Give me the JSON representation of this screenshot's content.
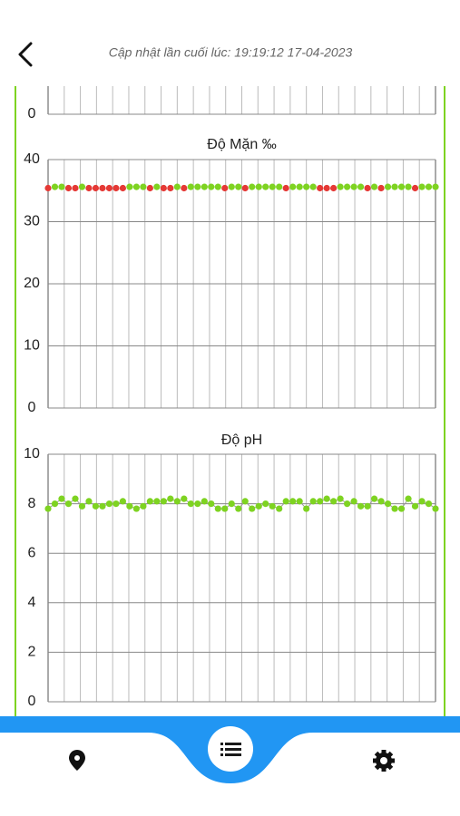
{
  "header": {
    "title": "Cập nhật lần cuối lúc: 19:19:12 17-04-2023"
  },
  "chart_data": [
    {
      "type": "line",
      "yticks": [
        0
      ]
    },
    {
      "type": "scatter",
      "title": "Độ Mặn  ‰",
      "ylim": [
        0,
        40
      ],
      "yticks": [
        0,
        10,
        20,
        30,
        40
      ],
      "grid": true,
      "values": [
        35.4,
        35.6,
        35.6,
        35.4,
        35.4,
        35.6,
        35.4,
        35.4,
        35.4,
        35.4,
        35.4,
        35.4,
        35.6,
        35.6,
        35.6,
        35.4,
        35.6,
        35.4,
        35.4,
        35.6,
        35.4,
        35.6,
        35.6,
        35.6,
        35.6,
        35.6,
        35.4,
        35.6,
        35.6,
        35.4,
        35.6,
        35.6,
        35.6,
        35.6,
        35.6,
        35.4,
        35.6,
        35.6,
        35.6,
        35.6,
        35.4,
        35.4,
        35.4,
        35.6,
        35.6,
        35.6,
        35.6,
        35.4,
        35.6,
        35.4,
        35.6,
        35.6,
        35.6,
        35.6,
        35.4,
        35.6,
        35.6,
        35.6
      ],
      "colors": [
        "#e53935",
        "#7ed321",
        "#7ed321",
        "#e53935",
        "#e53935",
        "#7ed321",
        "#e53935",
        "#e53935",
        "#e53935",
        "#e53935",
        "#e53935",
        "#e53935",
        "#7ed321",
        "#7ed321",
        "#7ed321",
        "#e53935",
        "#7ed321",
        "#e53935",
        "#e53935",
        "#7ed321",
        "#e53935",
        "#7ed321",
        "#7ed321",
        "#7ed321",
        "#7ed321",
        "#7ed321",
        "#e53935",
        "#7ed321",
        "#7ed321",
        "#e53935",
        "#7ed321",
        "#7ed321",
        "#7ed321",
        "#7ed321",
        "#7ed321",
        "#e53935",
        "#7ed321",
        "#7ed321",
        "#7ed321",
        "#7ed321",
        "#e53935",
        "#e53935",
        "#e53935",
        "#7ed321",
        "#7ed321",
        "#7ed321",
        "#7ed321",
        "#e53935",
        "#7ed321",
        "#e53935",
        "#7ed321",
        "#7ed321",
        "#7ed321",
        "#7ed321",
        "#e53935",
        "#7ed321",
        "#7ed321",
        "#7ed321"
      ]
    },
    {
      "type": "line",
      "title": "Độ pH",
      "ylim": [
        0,
        10
      ],
      "yticks": [
        0,
        2,
        4,
        6,
        8,
        10
      ],
      "grid": true,
      "color": "#7ed321",
      "line_color": "#999999",
      "values": [
        7.8,
        8.0,
        8.2,
        8.0,
        8.2,
        7.9,
        8.1,
        7.9,
        7.9,
        8.0,
        8.0,
        8.1,
        7.9,
        7.8,
        7.9,
        8.1,
        8.1,
        8.1,
        8.2,
        8.1,
        8.2,
        8.0,
        8.0,
        8.1,
        8.0,
        7.8,
        7.8,
        8.0,
        7.8,
        8.1,
        7.8,
        7.9,
        8.0,
        7.9,
        7.8,
        8.1,
        8.1,
        8.1,
        7.8,
        8.1,
        8.1,
        8.2,
        8.1,
        8.2,
        8.0,
        8.1,
        7.9,
        7.9,
        8.2,
        8.1,
        8.0,
        7.8,
        7.8,
        8.2,
        7.9,
        8.1,
        8.0,
        7.8
      ]
    }
  ]
}
